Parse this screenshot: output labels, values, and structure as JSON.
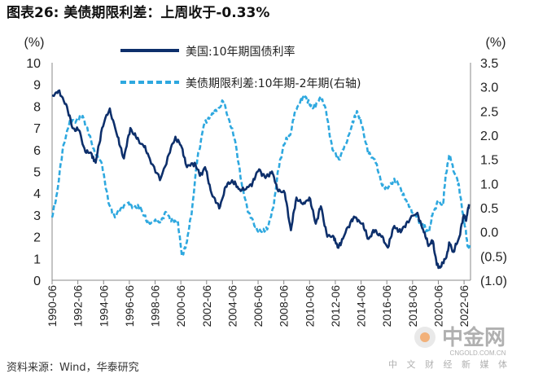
{
  "chart_data": {
    "type": "line",
    "title": "图表26:   美债期限利差：上周收于-0.33%",
    "ylabel_left": "(%)",
    "ylabel_right": "(%)",
    "ylim_left": [
      0,
      10
    ],
    "ylim_right": [
      -1.0,
      3.5
    ],
    "yticks_left": [
      "0",
      "1",
      "2",
      "3",
      "4",
      "5",
      "6",
      "7",
      "8",
      "9",
      "10"
    ],
    "yticks_right": [
      "(1.0)",
      "(0.5)",
      "0.0",
      "0.5",
      "1.0",
      "1.5",
      "2.0",
      "2.5",
      "3.0",
      "3.5"
    ],
    "ytick_values_right": [
      -1.0,
      -0.5,
      0.0,
      0.5,
      1.0,
      1.5,
      2.0,
      2.5,
      3.0,
      3.5
    ],
    "xrange": [
      1990.42,
      2022.92
    ],
    "xticks": [
      "1990-06",
      "1992-06",
      "1994-06",
      "1996-06",
      "1998-06",
      "2000-06",
      "2002-06",
      "2004-06",
      "2006-06",
      "2008-06",
      "2010-06",
      "2012-06",
      "2014-06",
      "2016-06",
      "2018-06",
      "2020-06",
      "2022-06"
    ],
    "xtick_values": [
      1990.42,
      1992.42,
      1994.42,
      1996.42,
      1998.42,
      2000.42,
      2002.42,
      2004.42,
      2006.42,
      2008.42,
      2010.42,
      2012.42,
      2014.42,
      2016.42,
      2018.42,
      2020.42,
      2022.42
    ],
    "series": [
      {
        "name": "美国:10年期国债利率",
        "axis": "left",
        "color": "#0d2f6b",
        "style": "solid",
        "x": [
          1990.42,
          1990.9,
          1991.5,
          1992.0,
          1992.5,
          1993.0,
          1993.5,
          1993.8,
          1994.3,
          1994.9,
          1995.5,
          1996.0,
          1996.5,
          1997.0,
          1997.5,
          1998.0,
          1998.8,
          1999.5,
          2000.0,
          2000.5,
          2000.9,
          2001.5,
          2001.9,
          2002.3,
          2002.8,
          2003.4,
          2003.9,
          2004.4,
          2004.9,
          2005.5,
          2006.0,
          2006.5,
          2007.0,
          2007.5,
          2007.9,
          2008.5,
          2008.97,
          2009.4,
          2009.9,
          2010.4,
          2010.9,
          2011.3,
          2011.8,
          2012.3,
          2012.6,
          2013.0,
          2013.7,
          2014.0,
          2014.5,
          2015.0,
          2015.5,
          2016.0,
          2016.5,
          2017.0,
          2017.5,
          2018.0,
          2018.8,
          2019.3,
          2019.7,
          2020.0,
          2020.3,
          2020.6,
          2021.0,
          2021.3,
          2021.6,
          2022.0,
          2022.4,
          2022.6,
          2022.8
        ],
        "values": [
          8.5,
          8.7,
          8.1,
          7.0,
          6.9,
          5.9,
          5.8,
          5.4,
          7.0,
          7.9,
          6.6,
          5.6,
          7.0,
          6.5,
          6.2,
          5.6,
          4.6,
          5.8,
          6.6,
          6.1,
          5.2,
          5.4,
          4.8,
          5.2,
          4.0,
          3.3,
          4.3,
          4.6,
          4.2,
          4.2,
          4.5,
          5.1,
          4.7,
          5.0,
          4.2,
          4.0,
          2.3,
          3.8,
          3.5,
          3.8,
          2.6,
          3.4,
          2.0,
          2.0,
          1.5,
          1.9,
          2.8,
          2.9,
          2.6,
          1.9,
          2.3,
          2.0,
          1.5,
          2.5,
          2.2,
          2.7,
          3.1,
          2.2,
          1.6,
          1.8,
          0.7,
          0.6,
          1.0,
          1.7,
          1.3,
          1.9,
          3.0,
          2.8,
          3.5
        ]
      },
      {
        "name": "美债期限利差:10年期-2年期(右轴)",
        "axis": "right",
        "color": "#2ea8df",
        "style": "dashed",
        "x": [
          1990.42,
          1990.8,
          1991.3,
          1991.8,
          1992.3,
          1992.8,
          1993.3,
          1993.8,
          1994.3,
          1994.8,
          1995.3,
          1995.8,
          1996.3,
          1996.8,
          1997.3,
          1997.8,
          1998.3,
          1998.8,
          1999.3,
          1999.8,
          2000.2,
          2000.5,
          2000.9,
          2001.3,
          2001.7,
          2002.2,
          2002.7,
          2003.2,
          2003.7,
          2004.2,
          2004.7,
          2005.2,
          2005.7,
          2006.2,
          2006.7,
          2007.2,
          2007.6,
          2008.0,
          2008.4,
          2008.9,
          2009.3,
          2009.7,
          2010.1,
          2010.5,
          2010.9,
          2011.3,
          2011.7,
          2012.2,
          2012.7,
          2013.2,
          2013.7,
          2014.1,
          2014.5,
          2015.0,
          2015.5,
          2016.0,
          2016.5,
          2017.0,
          2017.5,
          2018.0,
          2018.5,
          2019.0,
          2019.3,
          2019.7,
          2020.0,
          2020.4,
          2020.8,
          2021.0,
          2021.3,
          2021.7,
          2022.0,
          2022.3,
          2022.5,
          2022.7,
          2022.85
        ],
        "values": [
          0.3,
          0.8,
          1.8,
          2.3,
          2.3,
          2.4,
          2.0,
          1.6,
          1.4,
          0.6,
          0.3,
          0.5,
          0.6,
          0.5,
          0.5,
          0.2,
          0.2,
          0.2,
          0.4,
          0.2,
          0.2,
          -0.5,
          -0.2,
          0.5,
          1.5,
          2.2,
          2.4,
          2.5,
          2.7,
          2.3,
          1.8,
          0.9,
          0.4,
          0.1,
          0.0,
          0.1,
          0.5,
          1.3,
          1.8,
          2.0,
          2.5,
          2.7,
          2.8,
          2.6,
          2.6,
          2.8,
          2.5,
          1.7,
          1.5,
          1.8,
          2.2,
          2.5,
          2.2,
          1.6,
          1.5,
          1.0,
          0.9,
          1.1,
          0.9,
          0.6,
          0.4,
          0.2,
          0.1,
          0.0,
          0.4,
          0.6,
          0.6,
          1.2,
          1.6,
          1.2,
          1.0,
          0.4,
          0.1,
          -0.3,
          -0.33
        ]
      }
    ]
  },
  "source_note": "资料来源：Wind，华泰研究",
  "watermark": {
    "main": "中金网",
    "url": "CNGOLD.COM.CN",
    "tagline": "中 文 财 经 新 媒 体"
  }
}
